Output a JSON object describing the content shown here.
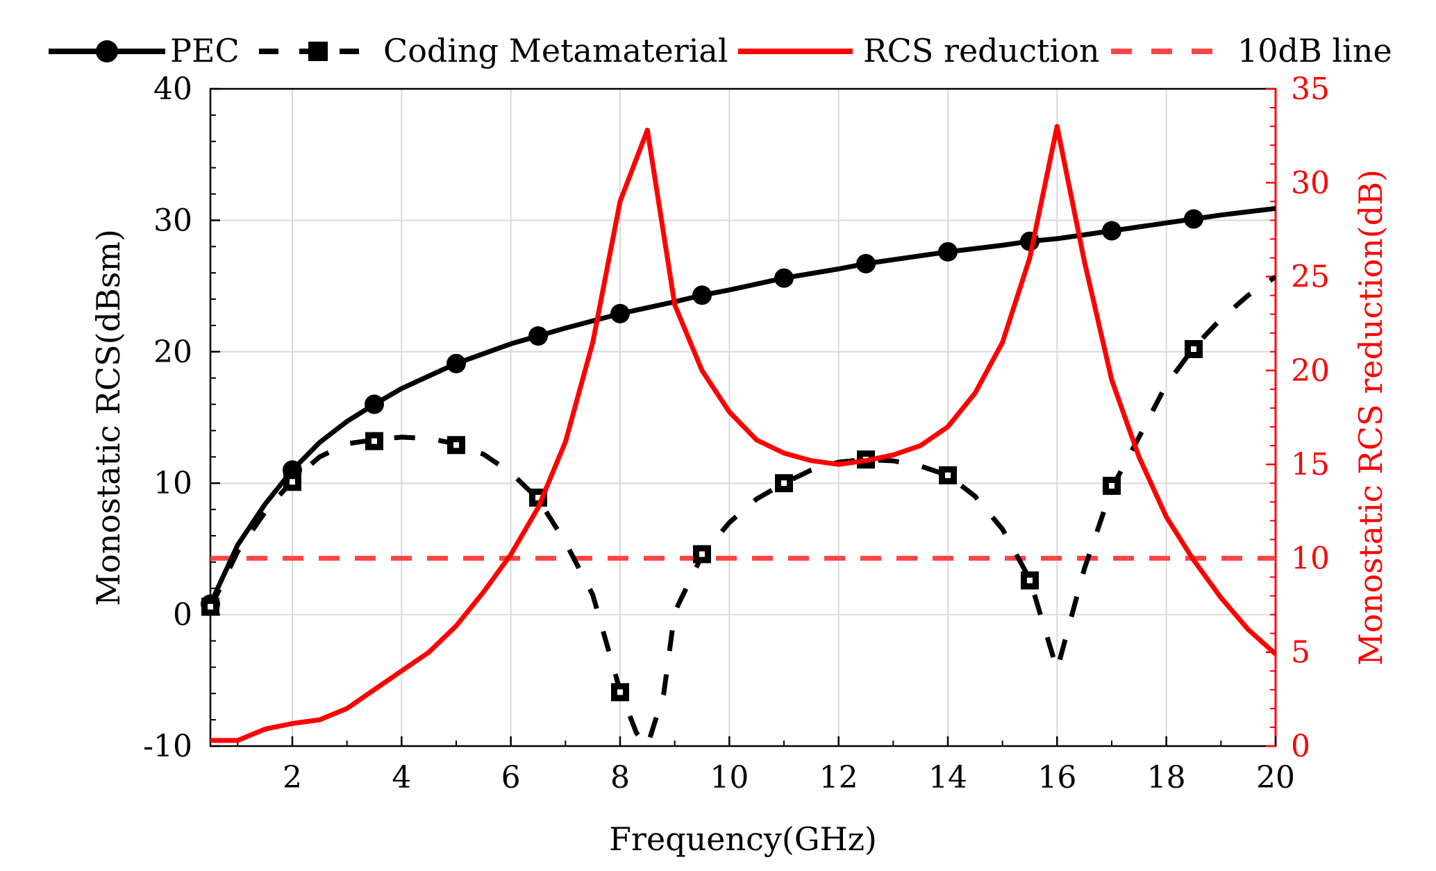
{
  "chart_data": {
    "type": "line",
    "xlabel": "Frequency(GHz)",
    "ylabel_left": "Monostatic RCS(dBsm)",
    "ylabel_right": "Monostatic RCS reduction(dB)",
    "xlim": [
      0.5,
      20
    ],
    "ylim_left": [
      -10,
      40
    ],
    "ylim_right": [
      0,
      35
    ],
    "x_ticks": [
      2,
      4,
      6,
      8,
      10,
      12,
      14,
      16,
      18,
      20
    ],
    "y_left_ticks": [
      -10,
      0,
      10,
      20,
      30,
      40
    ],
    "y_right_ticks": [
      0,
      5,
      10,
      15,
      20,
      25,
      30,
      35
    ],
    "x_tick_labels": [
      "2",
      "4",
      "6",
      "8",
      "10",
      "12",
      "14",
      "16",
      "18",
      "20"
    ],
    "y_left_tick_labels": [
      "-10",
      "0",
      "10",
      "20",
      "30",
      "40"
    ],
    "y_right_tick_labels": [
      "0",
      "5",
      "10",
      "15",
      "20",
      "25",
      "30",
      "35"
    ],
    "grid": true,
    "legend_position": "top",
    "series": [
      {
        "name": "PEC",
        "axis": "left",
        "color": "#000000",
        "style": "solid",
        "marker": "circle",
        "x": [
          0.5,
          1.0,
          1.5,
          2.0,
          2.5,
          3.0,
          3.5,
          4.0,
          5.0,
          6.0,
          6.5,
          7.0,
          8.0,
          9.0,
          9.5,
          10.0,
          11.0,
          12.0,
          12.5,
          13.0,
          14.0,
          15.0,
          15.5,
          16.0,
          17.0,
          18.0,
          18.5,
          19.0,
          20.0
        ],
        "y": [
          0.8,
          5.3,
          8.4,
          11.0,
          13.1,
          14.7,
          16.0,
          17.2,
          19.1,
          20.6,
          21.2,
          21.8,
          22.9,
          23.8,
          24.3,
          24.7,
          25.6,
          26.3,
          26.7,
          27.0,
          27.6,
          28.1,
          28.4,
          28.6,
          29.2,
          29.8,
          30.1,
          30.4,
          30.9
        ],
        "marker_x": [
          0.5,
          2.0,
          3.5,
          5.0,
          6.5,
          8.0,
          9.5,
          11.0,
          12.5,
          14.0,
          15.5,
          17.0,
          18.5
        ]
      },
      {
        "name": "Coding Metamaterial",
        "axis": "left",
        "color": "#000000",
        "style": "dashed",
        "marker": "square",
        "x": [
          0.5,
          1.0,
          1.5,
          2.0,
          2.5,
          3.0,
          3.5,
          4.0,
          4.5,
          5.0,
          5.5,
          6.0,
          6.5,
          7.0,
          7.5,
          8.0,
          8.3,
          8.5,
          8.8,
          9.0,
          9.5,
          10.0,
          10.5,
          11.0,
          11.5,
          12.0,
          12.5,
          13.0,
          13.5,
          14.0,
          14.5,
          15.0,
          15.5,
          16.0,
          16.5,
          17.0,
          17.5,
          18.0,
          18.5,
          19.0,
          19.5,
          20.0
        ],
        "y": [
          0.5,
          4.8,
          7.8,
          10.2,
          12.0,
          13.0,
          13.3,
          13.5,
          13.4,
          13.0,
          12.2,
          10.8,
          8.8,
          5.5,
          1.5,
          -5.8,
          -9.0,
          -10.0,
          -6.0,
          0.2,
          4.5,
          7.0,
          8.8,
          10.0,
          11.0,
          11.6,
          11.8,
          11.7,
          11.3,
          10.6,
          9.0,
          6.5,
          2.7,
          -4.2,
          3.5,
          9.6,
          13.5,
          17.5,
          20.3,
          22.5,
          24.3,
          25.7
        ],
        "marker_x": [
          0.5,
          2.0,
          3.5,
          5.0,
          6.5,
          8.0,
          9.5,
          11.0,
          12.5,
          14.0,
          15.5,
          17.0,
          18.5
        ],
        "marker_y": [
          0.6,
          10.1,
          13.2,
          12.9,
          8.9,
          -5.9,
          4.6,
          10.0,
          11.8,
          10.6,
          2.6,
          9.8,
          20.2
        ]
      },
      {
        "name": "RCS reduction",
        "axis": "right",
        "color": "#ff0000",
        "style": "solid",
        "marker": "none",
        "x": [
          0.5,
          1.0,
          1.5,
          2.0,
          2.5,
          3.0,
          3.5,
          4.0,
          4.5,
          5.0,
          5.5,
          6.0,
          6.5,
          7.0,
          7.5,
          8.0,
          8.5,
          9.0,
          9.5,
          10.0,
          10.5,
          11.0,
          11.5,
          12.0,
          12.5,
          13.0,
          13.5,
          14.0,
          14.5,
          15.0,
          15.5,
          16.0,
          16.5,
          17.0,
          17.5,
          18.0,
          18.5,
          19.0,
          19.5,
          20.0
        ],
        "y": [
          0.3,
          0.3,
          0.9,
          1.2,
          1.4,
          2.0,
          3.0,
          4.0,
          5.0,
          6.4,
          8.2,
          10.2,
          12.7,
          16.2,
          21.5,
          29.0,
          32.8,
          23.5,
          20.0,
          17.8,
          16.3,
          15.6,
          15.2,
          15.0,
          15.2,
          15.5,
          16.0,
          17.0,
          18.8,
          21.5,
          26.0,
          33.0,
          25.8,
          19.5,
          15.4,
          12.2,
          9.9,
          7.9,
          6.2,
          4.9
        ]
      },
      {
        "name": "10dB line",
        "axis": "right",
        "color": "#ff4444",
        "style": "dashed",
        "marker": "none",
        "x": [
          0.5,
          20
        ],
        "y": [
          10,
          10
        ]
      }
    ]
  }
}
